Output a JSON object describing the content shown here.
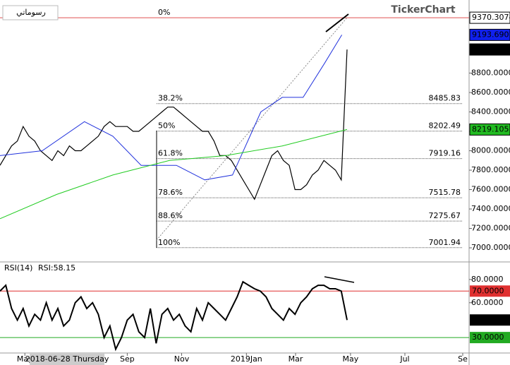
{
  "toolbar_label": "رسوماتي",
  "logo": "TickerChart",
  "chart_data": {
    "type": "line",
    "x": [
      0,
      1,
      2,
      3,
      4,
      5,
      6,
      7,
      8,
      9,
      10,
      11,
      12,
      13,
      14,
      15,
      16,
      17,
      18,
      19,
      20,
      21,
      22,
      23,
      24,
      25,
      26,
      27,
      28,
      29,
      30,
      31,
      32,
      33,
      34,
      35,
      36,
      37,
      38,
      39,
      40,
      41,
      42,
      43,
      44,
      45,
      46,
      47,
      48,
      49,
      50,
      51,
      52,
      53,
      54,
      55,
      56,
      57,
      58,
      59,
      60
    ],
    "xlim": [
      0,
      81.1
    ],
    "xticks": [
      {
        "value": 4.3,
        "label": "May"
      },
      {
        "value": 22,
        "label": "Sep"
      },
      {
        "value": 31.4,
        "label": "Nov"
      },
      {
        "value": 42.6,
        "label": "2019Jan"
      },
      {
        "value": 51.1,
        "label": "Mar"
      },
      {
        "value": 60.6,
        "label": "May"
      },
      {
        "value": 70,
        "label": "Jul"
      },
      {
        "value": 80,
        "label": "Se"
      }
    ],
    "crosshair_label": {
      "value": 11.6,
      "label": "2018-06-28 Thursday"
    },
    "ylim": [
      6862,
      9553
    ],
    "yticks": [
      {
        "value": 7000,
        "label": "7000.0000"
      },
      {
        "value": 7200,
        "label": "7200.0000"
      },
      {
        "value": 7400,
        "label": "7400.0000"
      },
      {
        "value": 7600,
        "label": "7600.0000"
      },
      {
        "value": 7800,
        "label": "7800.0000"
      },
      {
        "value": 8000,
        "label": "8000.0000"
      },
      {
        "value": 8200,
        "label": "8200.0000"
      },
      {
        "value": 8400,
        "label": "8400.0000"
      },
      {
        "value": 8600,
        "label": "8600.0000"
      },
      {
        "value": 8800,
        "label": "8800.0000"
      }
    ],
    "series": [
      {
        "color": "#000000",
        "values": [
          7850,
          7950,
          8050,
          8100,
          8250,
          8150,
          8100,
          8000,
          7950,
          7900,
          8000,
          7950,
          8050,
          8000,
          8000,
          8050,
          8100,
          8150,
          8250,
          8300,
          8250,
          8250,
          8250,
          8200,
          8200,
          8250,
          8300,
          8350,
          8400,
          8450,
          8450,
          8400,
          8350,
          8300,
          8250,
          8200,
          8200,
          8100,
          7950,
          7950,
          7900,
          7800,
          7700,
          7600,
          7500,
          7650,
          7800,
          7950,
          8000,
          7900,
          7850,
          7600,
          7600,
          7650,
          7750,
          7800,
          7900,
          7850,
          7800,
          7700,
          9043.2207
        ]
      },
      {
        "color": "#2233dd",
        "x": [
          0,
          7.3,
          14.6,
          19.5,
          24.4,
          30.5,
          35.4,
          40.2,
          45.1,
          48.8,
          52.4,
          56.1,
          59.1
        ],
        "values": [
          7950,
          8000,
          8300,
          8150,
          7850,
          7850,
          7700,
          7750,
          8400,
          8550,
          8550,
          8900,
          9193.6907
        ]
      },
      {
        "color": "#22cc22",
        "x": [
          0,
          9.8,
          19.5,
          29.3,
          39,
          48.8,
          60
        ],
        "values": [
          7300,
          7550,
          7750,
          7900,
          7950,
          8050,
          8219.1057
        ]
      }
    ],
    "last_values": [
      9370.3074,
      9193.6907,
      9043.2207,
      8219.1057
    ],
    "fib_levels": [
      {
        "label": "0%",
        "value": 9370.3074
      },
      {
        "label": "38.2%",
        "value": 8485.83
      },
      {
        "label": "50%",
        "value": 8202.49
      },
      {
        "label": "61.8%",
        "value": 7919.16
      },
      {
        "label": "78.6%",
        "value": 7515.78
      },
      {
        "label": "88.6%",
        "value": 7275.67
      },
      {
        "label": "100%",
        "value": 7001.94
      }
    ],
    "rsi": {
      "title": "RSI(14)",
      "reading": "RSI:58.15",
      "ylim": [
        16.7,
        94.5
      ],
      "yticks": [
        {
          "value": 80,
          "label": "80.0000"
        },
        {
          "value": 60,
          "label": "60.0000"
        }
      ],
      "levels": [
        {
          "value": 70,
          "label": "70.0000",
          "color": "#e03030"
        },
        {
          "value": 30,
          "label": "30.0000",
          "color": "#22aa22"
        }
      ],
      "last": {
        "value": 45.1112,
        "label": "45.1112"
      },
      "values": [
        70,
        75,
        55,
        45,
        55,
        40,
        50,
        45,
        60,
        45,
        55,
        40,
        45,
        60,
        65,
        55,
        60,
        50,
        30,
        40,
        20,
        30,
        45,
        50,
        35,
        30,
        55,
        25,
        50,
        55,
        45,
        50,
        40,
        35,
        55,
        45,
        60,
        55,
        50,
        45,
        55,
        65,
        78,
        75,
        72,
        70,
        65,
        55,
        50,
        45,
        55,
        50,
        60,
        65,
        72,
        75,
        75,
        72,
        72,
        70,
        45.1112
      ]
    }
  }
}
